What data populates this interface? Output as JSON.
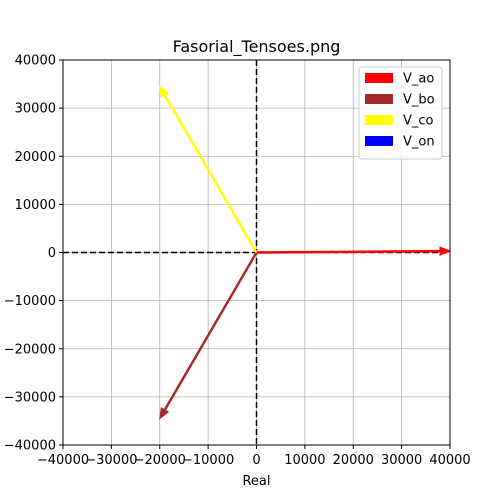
{
  "chart_data": {
    "type": "phasor",
    "title": "Fasorial_Tensoes.png",
    "xlabel": "Real",
    "ylabel": "",
    "xlim": [
      -40000,
      40000
    ],
    "ylim": [
      -40000,
      40000
    ],
    "x_ticks": [
      -40000,
      -30000,
      -20000,
      -10000,
      0,
      10000,
      20000,
      30000,
      40000
    ],
    "y_ticks": [
      -40000,
      -30000,
      -20000,
      -10000,
      0,
      10000,
      20000,
      30000,
      40000
    ],
    "x_tick_labels": [
      "−40000",
      "−30000",
      "−20000",
      "−10000",
      "0",
      "10000",
      "20000",
      "30000",
      "40000"
    ],
    "y_tick_labels": [
      "−40000",
      "−30000",
      "−20000",
      "−10000",
      "0",
      "10000",
      "20000",
      "30000",
      "40000"
    ],
    "grid": true,
    "reference_lines": "dashed black lines at x=0 and y=0",
    "legend_position": "top-right",
    "series": [
      {
        "name": "V_ao",
        "color": "#ff0000",
        "legend_color": "#ff0000",
        "start": [
          0,
          0
        ],
        "end": [
          40000,
          300
        ]
      },
      {
        "name": "V_bo",
        "color": "#a52a2a",
        "legend_color": "#a52a2a",
        "start": [
          0,
          0
        ],
        "end": [
          -20000,
          -34500
        ]
      },
      {
        "name": "V_co",
        "color": "#ffff00",
        "legend_color": "#ffff00",
        "start": [
          0,
          0
        ],
        "end": [
          -20000,
          34500
        ]
      },
      {
        "name": "V_on",
        "color": "#0000ff",
        "legend_color": "#0000ff",
        "start": [
          0,
          0
        ],
        "end": [
          0,
          0
        ]
      }
    ]
  }
}
